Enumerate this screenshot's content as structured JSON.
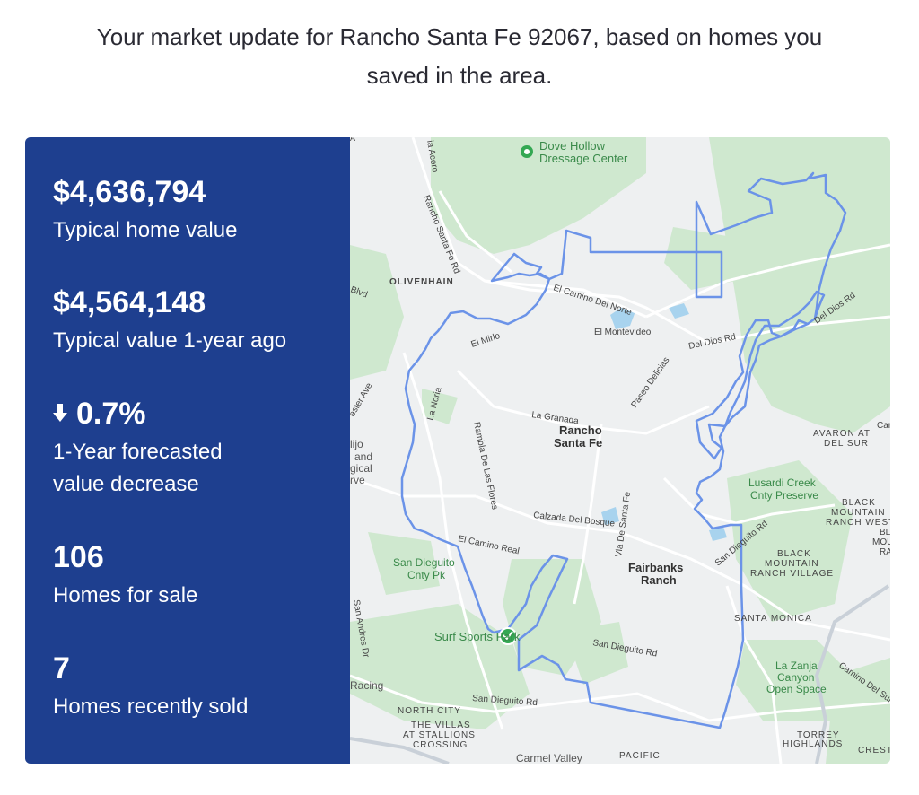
{
  "intro": {
    "line1": "Your market update for Rancho Santa Fe 92067, based on homes you",
    "line2": "saved in the area."
  },
  "stats": {
    "home_value": {
      "value": "$4,636,794",
      "label": "Typical home value"
    },
    "prior_value": {
      "value": "$4,564,148",
      "label": "Typical value 1-year ago"
    },
    "forecast": {
      "value": "0.7%",
      "label_line1": "1-Year forecasted",
      "label_line2": "value decrease",
      "direction_icon": "arrow-down-icon"
    },
    "for_sale": {
      "value": "106",
      "label": "Homes for sale"
    },
    "sold": {
      "value": "7",
      "label": "Homes recently sold"
    }
  },
  "colors": {
    "panel_bg": "#1e3f8f",
    "boundary": "#6b93e8",
    "park": "#cfe8cf",
    "water": "#a8d3ee",
    "poi_green": "#34a853"
  },
  "map": {
    "pois": [
      {
        "name": "poi-dove-hollow",
        "line1": "Dove Hollow",
        "line2": "Dressage Center",
        "icon": "map-pin-icon"
      },
      {
        "name": "poi-surf-sports-park",
        "line1": "Surf Sports Park",
        "icon": "map-pin-icon"
      }
    ],
    "places": {
      "rancho_santa_fe_1": "Rancho",
      "rancho_santa_fe_2": "Santa Fe",
      "fairbanks_1": "Fairbanks",
      "fairbanks_2": "Ranch",
      "olivenhain": "OLIVENHAIN",
      "avaron_1": "AVARON AT",
      "avaron_2": "DEL SUR",
      "black_mtn_west_1": "BLACK",
      "black_mtn_west_2": "MOUNTAIN",
      "black_mtn_west_3": "RANCH WEST",
      "black_mtn_village_1": "BLACK",
      "black_mtn_village_2": "MOUNTAIN",
      "black_mtn_village_3": "RANCH VILLAGE",
      "santa_monica": "SANTA MONICA",
      "north_city": "NORTH CITY",
      "villas_1": "THE VILLAS",
      "villas_2": "AT STALLIONS",
      "villas_3": "CROSSING",
      "torrey_1": "TORREY",
      "torrey_2": "HIGHLANDS",
      "pacific": "PACIFIC",
      "carmel_valley": "Carmel Valley",
      "crest": "CREST",
      "lusardi_1": "Lusardi Creek",
      "lusardi_2": "Cnty Preserve",
      "sd_cnty_pk_1": "San Dieguito",
      "sd_cnty_pk_2": "Cnty Pk",
      "la_zanja_1": "La Zanja",
      "la_zanja_2": "Canyon",
      "la_zanja_3": "Open Space",
      "racing": "Racing",
      "lagoon_1": "lijo",
      "lagoon_2": "and",
      "lagoon_3": "gical",
      "lagoon_4": "rve",
      "car": "Car",
      "bl": "BL",
      "mou": "MOU",
      "ra": "RA"
    },
    "roads": {
      "el_camino_del_norte": "El Camino Del Norte",
      "el_montevideo": "El Montevideo",
      "del_dios_rd": "Del Dios Rd",
      "del_dios_rd_2": "Del Dios Rd",
      "paseo_delicias": "Paseo Delicias",
      "la_granada": "La Granada",
      "el_mirlo": "El Mirlo",
      "la_noria": "La Noria",
      "rambla_de_las_flores": "Rambla De Las Flores",
      "calzada_del_bosque": "Calzada Del Bosque",
      "via_de_santa_fe": "Via De Santa Fe",
      "san_dieguito_rd_east": "San Dieguito Rd",
      "san_dieguito_rd_south": "San Dieguito Rd",
      "san_dieguito_rd_bottom": "San Dieguito Rd",
      "el_camino_real": "El Camino Real",
      "rancho_santa_fe_rd": "Rancho Santa Fe Rd",
      "camino_del_sur": "Camino Del Sur",
      "manchester_ave": "ester Ave",
      "blvd": "Blvd",
      "via_acero": "ia Acero",
      "san_andres_dr": "San Andres Dr",
      "a_top": "A"
    }
  }
}
